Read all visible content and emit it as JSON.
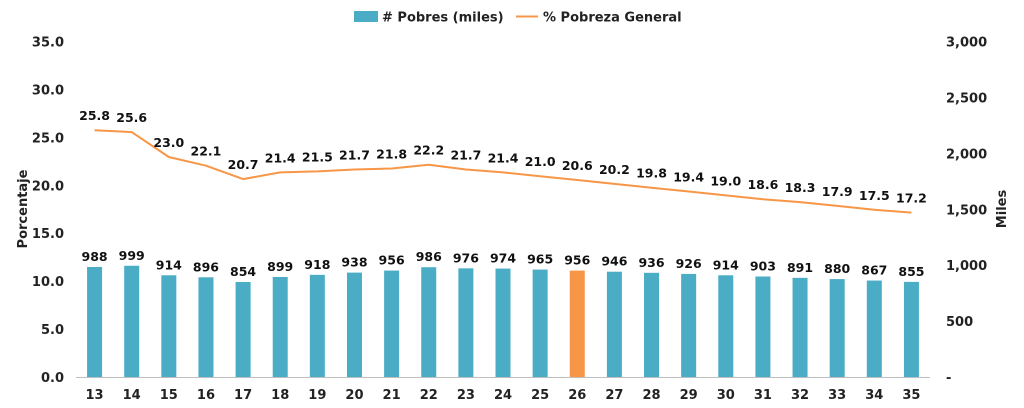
{
  "chart_data": {
    "type": "bar+line",
    "categories": [
      "13",
      "14",
      "15",
      "16",
      "17",
      "18",
      "19",
      "20",
      "21",
      "22",
      "23",
      "24",
      "25",
      "26",
      "27",
      "28",
      "29",
      "30",
      "31",
      "32",
      "33",
      "34",
      "35"
    ],
    "series": [
      {
        "name": "# Pobres (miles)",
        "type": "bar",
        "axis": "right",
        "color": "#4BACC6",
        "highlight_index": 13,
        "highlight_color": "#F79646",
        "values": [
          988,
          999,
          914,
          896,
          854,
          899,
          918,
          938,
          956,
          986,
          976,
          974,
          965,
          956,
          946,
          936,
          926,
          914,
          903,
          891,
          880,
          867,
          855
        ],
        "labels": [
          "988",
          "999",
          "914",
          "896",
          "854",
          "899",
          "918",
          "938",
          "956",
          "986",
          "976",
          "974",
          "965",
          "956",
          "946",
          "936",
          "926",
          "914",
          "903",
          "891",
          "880",
          "867",
          "855"
        ]
      },
      {
        "name": "% Pobreza General",
        "type": "line",
        "axis": "left",
        "color": "#F79646",
        "values": [
          25.8,
          25.6,
          23.0,
          22.1,
          20.7,
          21.4,
          21.5,
          21.7,
          21.8,
          22.2,
          21.7,
          21.4,
          21.0,
          20.6,
          20.2,
          19.8,
          19.4,
          19.0,
          18.6,
          18.3,
          17.9,
          17.5,
          17.2
        ],
        "labels": [
          "25.8",
          "25.6",
          "23.0",
          "22.1",
          "20.7",
          "21.4",
          "21.5",
          "21.7",
          "21.8",
          "22.2",
          "21.7",
          "21.4",
          "21.0",
          "20.6",
          "20.2",
          "19.8",
          "19.4",
          "19.0",
          "18.6",
          "18.3",
          "17.9",
          "17.5",
          "17.2"
        ]
      }
    ],
    "y_left": {
      "label": "Porcentaje",
      "ylim": [
        0,
        35
      ],
      "ticks": [
        0,
        5,
        10,
        15,
        20,
        25,
        30,
        35
      ],
      "tick_labels": [
        "0.0",
        "5.0",
        "10.0",
        "15.0",
        "20.0",
        "25.0",
        "30.0",
        "35.0"
      ]
    },
    "y_right": {
      "label": "Miles",
      "ylim": [
        0,
        3000
      ],
      "ticks": [
        0,
        500,
        1000,
        1500,
        2000,
        2500,
        3000
      ],
      "tick_labels": [
        "-",
        "500",
        "1,000",
        "1,500",
        "2,000",
        "2,500",
        "3,000"
      ]
    },
    "grid": false,
    "legend_position": "top-center"
  }
}
